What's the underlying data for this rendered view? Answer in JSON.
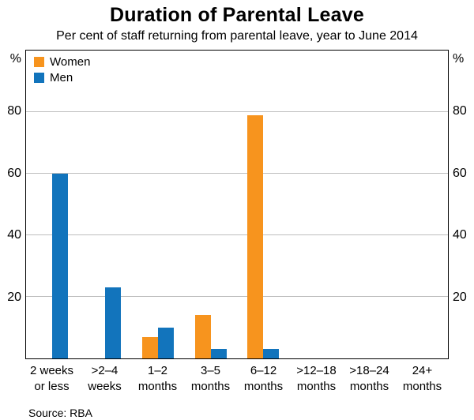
{
  "header": {
    "title": "Duration of Parental Leave",
    "subtitle": "Per cent of staff returning from parental leave, year to June 2014"
  },
  "y_axis": {
    "unit": "%"
  },
  "footer": {
    "source": "Source: RBA"
  },
  "chart_data": {
    "type": "bar",
    "title": "Duration of Parental Leave",
    "subtitle": "Per cent of staff returning from parental leave, year to June 2014",
    "categories": [
      "2 weeks\nor less",
      ">2–4\nweeks",
      "1–2\nmonths",
      "3–5\nmonths",
      "6–12\nmonths",
      ">12–18\nmonths",
      ">18–24\nmonths",
      "24+\nmonths"
    ],
    "series": [
      {
        "name": "Women",
        "color": "#F7941E",
        "values": [
          0,
          0,
          7,
          14,
          79,
          0,
          0,
          0
        ]
      },
      {
        "name": "Men",
        "color": "#1274BC",
        "values": [
          60,
          23,
          10,
          3,
          3,
          0,
          0,
          0
        ]
      }
    ],
    "ylabel": "%",
    "ylim": [
      0,
      100
    ],
    "yticks": [
      20,
      40,
      60,
      80
    ],
    "grid": true,
    "legend_position": "top-left",
    "source": "Source: RBA"
  }
}
